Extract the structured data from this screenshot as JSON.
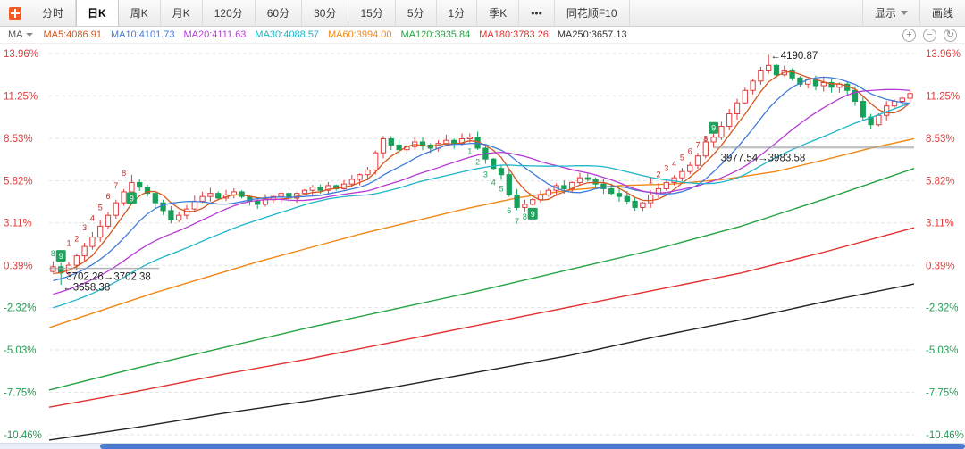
{
  "toolbar": {
    "tabs": [
      {
        "id": "time-share",
        "label": "分时"
      },
      {
        "id": "daily-k",
        "label": "日K",
        "active": true
      },
      {
        "id": "weekly-k",
        "label": "周K"
      },
      {
        "id": "monthly-k",
        "label": "月K"
      },
      {
        "id": "120-min",
        "label": "120分"
      },
      {
        "id": "60-min",
        "label": "60分"
      },
      {
        "id": "30-min",
        "label": "30分"
      },
      {
        "id": "15-min",
        "label": "15分"
      },
      {
        "id": "5-min",
        "label": "5分"
      },
      {
        "id": "1-min",
        "label": "1分"
      },
      {
        "id": "quarterly-k",
        "label": "季K"
      },
      {
        "id": "more",
        "label": "•••"
      },
      {
        "id": "ths-f10",
        "label": "同花顺F10"
      }
    ],
    "right_tabs": [
      {
        "id": "display",
        "label": "显示",
        "chevron": true
      },
      {
        "id": "draw-line",
        "label": "画线"
      }
    ]
  },
  "indicator_bar": {
    "selector": "MA",
    "mas": [
      {
        "text": "MA5:4086.91",
        "color": "#d4561e"
      },
      {
        "text": "MA10:4101.73",
        "color": "#3f7bd9"
      },
      {
        "text": "MA20:4111.63",
        "color": "#b63bd4"
      },
      {
        "text": "MA30:4088.57",
        "color": "#1fb5c9"
      },
      {
        "text": "MA60:3994.00",
        "color": "#f08818"
      },
      {
        "text": "MA120:3935.84",
        "color": "#27a343"
      },
      {
        "text": "MA180:3783.26",
        "color": "#e33030"
      },
      {
        "text": "MA250:3657.13",
        "color": "#333333"
      }
    ],
    "icons": [
      {
        "id": "zoom-in",
        "glyph": "+"
      },
      {
        "id": "zoom-out",
        "glyph": "−"
      },
      {
        "id": "reset-view",
        "glyph": "↻"
      }
    ]
  },
  "chart_data": {
    "type": "candlestick",
    "unit": "percent-change",
    "axis_up_color": "#e03b3b",
    "axis_down_color": "#1fa053",
    "up_color": "#e23a3a",
    "down_color": "#16a05a",
    "marker_red": "#c22b2b",
    "marker_green": "#1fa35c",
    "grid": true,
    "y_ticks": [
      {
        "label": "13.96%",
        "value": 13.96
      },
      {
        "label": "11.25%",
        "value": 11.25
      },
      {
        "label": "8.53%",
        "value": 8.53
      },
      {
        "label": "5.82%",
        "value": 5.82
      },
      {
        "label": "3.11%",
        "value": 3.11
      },
      {
        "label": "0.39%",
        "value": 0.39
      },
      {
        "label": "-2.32%",
        "value": -2.32
      },
      {
        "label": "-5.03%",
        "value": -5.03
      },
      {
        "label": "-7.75%",
        "value": -7.75
      },
      {
        "label": "-10.46%",
        "value": -10.46
      }
    ],
    "closes": [
      0.3,
      -0.1,
      0.4,
      1.0,
      1.6,
      2.2,
      2.9,
      3.6,
      4.4,
      5.1,
      5.7,
      5.4,
      5.0,
      4.4,
      3.9,
      3.3,
      3.6,
      4.0,
      4.5,
      4.8,
      5.0,
      4.7,
      4.9,
      5.1,
      4.8,
      4.5,
      4.3,
      4.6,
      4.8,
      5.0,
      4.7,
      5.0,
      5.2,
      5.4,
      5.2,
      5.5,
      5.3,
      5.6,
      5.9,
      6.2,
      6.5,
      7.6,
      8.5,
      8.1,
      7.8,
      8.0,
      8.3,
      8.1,
      7.9,
      8.2,
      8.4,
      8.2,
      8.5,
      8.6,
      7.9,
      7.2,
      6.6,
      6.2,
      4.9,
      4.1,
      4.3,
      4.6,
      4.9,
      5.2,
      5.5,
      5.3,
      5.7,
      6.0,
      5.9,
      5.6,
      5.3,
      5.0,
      4.8,
      4.5,
      4.1,
      4.4,
      4.9,
      5.3,
      5.7,
      6.0,
      6.4,
      6.8,
      7.4,
      8.3,
      8.6,
      9.3,
      10.1,
      10.8,
      11.6,
      12.2,
      12.9,
      13.2,
      12.6,
      12.9,
      12.4,
      12.0,
      12.3,
      11.9,
      12.1,
      11.8,
      12.0,
      11.6,
      10.9,
      9.9,
      9.4,
      10.0,
      10.6,
      10.9,
      11.1,
      11.4
    ],
    "wick_overrides": {
      "1": [
        null,
        -0.85
      ],
      "10": [
        6.2,
        null
      ],
      "91": [
        13.88,
        null
      ],
      "104": [
        null,
        9.15
      ]
    },
    "prior_trend": {
      "from": -5,
      "to": 0,
      "count": 30
    },
    "ma_overlays": [
      {
        "name": "MA5",
        "window": 5,
        "color": "#d4561e"
      },
      {
        "name": "MA10",
        "window": 10,
        "color": "#3f7bd9"
      },
      {
        "name": "MA20",
        "window": 20,
        "color": "#b63bd4"
      },
      {
        "name": "MA30",
        "window": 30,
        "color": "#1fb5c9"
      }
    ],
    "long_ma": [
      {
        "name": "MA60",
        "color": "#f08818",
        "points": [
          [
            0,
            -3.6
          ],
          [
            0.06,
            -2.5
          ],
          [
            0.12,
            -1.4
          ],
          [
            0.18,
            -0.4
          ],
          [
            0.24,
            0.6
          ],
          [
            0.3,
            1.5
          ],
          [
            0.36,
            2.4
          ],
          [
            0.42,
            3.2
          ],
          [
            0.48,
            4.0
          ],
          [
            0.54,
            4.7
          ],
          [
            0.6,
            5.2
          ],
          [
            0.66,
            5.5
          ],
          [
            0.72,
            5.6
          ],
          [
            0.78,
            5.9
          ],
          [
            0.84,
            6.4
          ],
          [
            0.9,
            7.2
          ],
          [
            0.95,
            7.9
          ],
          [
            1,
            8.5
          ]
        ]
      },
      {
        "name": "MA120",
        "color": "#27a343",
        "points": [
          [
            0,
            -7.6
          ],
          [
            0.1,
            -6.2
          ],
          [
            0.2,
            -4.9
          ],
          [
            0.3,
            -3.6
          ],
          [
            0.4,
            -2.4
          ],
          [
            0.5,
            -1.2
          ],
          [
            0.6,
            0.1
          ],
          [
            0.7,
            1.4
          ],
          [
            0.8,
            2.9
          ],
          [
            0.9,
            4.7
          ],
          [
            1,
            6.6
          ]
        ]
      },
      {
        "name": "MA180",
        "color": "#e33030",
        "points": [
          [
            0,
            -8.7
          ],
          [
            0.1,
            -7.7
          ],
          [
            0.2,
            -6.6
          ],
          [
            0.3,
            -5.6
          ],
          [
            0.4,
            -4.5
          ],
          [
            0.5,
            -3.4
          ],
          [
            0.6,
            -2.3
          ],
          [
            0.7,
            -1.2
          ],
          [
            0.8,
            -0.1
          ],
          [
            0.9,
            1.3
          ],
          [
            1,
            2.8
          ]
        ]
      },
      {
        "name": "MA250",
        "color": "#222222",
        "points": [
          [
            0,
            -10.8
          ],
          [
            0.1,
            -10.0
          ],
          [
            0.2,
            -9.1
          ],
          [
            0.3,
            -8.3
          ],
          [
            0.4,
            -7.4
          ],
          [
            0.5,
            -6.4
          ],
          [
            0.6,
            -5.4
          ],
          [
            0.7,
            -4.2
          ],
          [
            0.8,
            -3.1
          ],
          [
            0.9,
            -1.9
          ],
          [
            1,
            -0.8
          ]
        ]
      }
    ],
    "markers": [
      {
        "i": 0,
        "pct": 1.15,
        "t": "8",
        "c": "green"
      },
      {
        "i": 1,
        "pct": 1.0,
        "t": "9",
        "c": "green",
        "boxed": true
      },
      {
        "i": 2,
        "pct": 1.8,
        "t": "1",
        "c": "red"
      },
      {
        "i": 3,
        "pct": 2.1,
        "t": "2",
        "c": "red"
      },
      {
        "i": 4,
        "pct": 2.8,
        "t": "3",
        "c": "red"
      },
      {
        "i": 5,
        "pct": 3.4,
        "t": "4",
        "c": "red"
      },
      {
        "i": 6,
        "pct": 4.1,
        "t": "5",
        "c": "red"
      },
      {
        "i": 7,
        "pct": 4.8,
        "t": "6",
        "c": "red"
      },
      {
        "i": 8,
        "pct": 5.5,
        "t": "7",
        "c": "red"
      },
      {
        "i": 9,
        "pct": 6.3,
        "t": "8",
        "c": "red"
      },
      {
        "i": 10,
        "pct": 4.7,
        "t": "9",
        "c": "green",
        "boxed": true
      },
      {
        "i": 53,
        "pct": 7.7,
        "t": "1",
        "c": "green"
      },
      {
        "i": 54,
        "pct": 7.0,
        "t": "2",
        "c": "green"
      },
      {
        "i": 55,
        "pct": 6.2,
        "t": "3",
        "c": "green"
      },
      {
        "i": 56,
        "pct": 5.7,
        "t": "4",
        "c": "green"
      },
      {
        "i": 57,
        "pct": 5.3,
        "t": "5",
        "c": "green"
      },
      {
        "i": 58,
        "pct": 3.9,
        "t": "6",
        "c": "green"
      },
      {
        "i": 59,
        "pct": 3.2,
        "t": "7",
        "c": "green"
      },
      {
        "i": 60,
        "pct": 3.5,
        "t": "8",
        "c": "green"
      },
      {
        "i": 61,
        "pct": 3.7,
        "t": "9",
        "c": "green",
        "boxed": true
      },
      {
        "i": 76,
        "pct": 5.8,
        "t": "1",
        "c": "red"
      },
      {
        "i": 77,
        "pct": 6.2,
        "t": "2",
        "c": "red"
      },
      {
        "i": 78,
        "pct": 6.6,
        "t": "3",
        "c": "red"
      },
      {
        "i": 79,
        "pct": 6.9,
        "t": "4",
        "c": "red"
      },
      {
        "i": 80,
        "pct": 7.3,
        "t": "5",
        "c": "red"
      },
      {
        "i": 81,
        "pct": 7.7,
        "t": "6",
        "c": "red"
      },
      {
        "i": 82,
        "pct": 8.1,
        "t": "7",
        "c": "red"
      },
      {
        "i": 83,
        "pct": 8.5,
        "t": "8",
        "c": "red"
      },
      {
        "i": 84,
        "pct": 9.2,
        "t": "9",
        "c": "green",
        "boxed": true
      }
    ],
    "annotations": {
      "peak": {
        "i": 91,
        "pct": 13.85,
        "text": "←4190.87"
      },
      "resistance": {
        "from_i": 84,
        "pct": 7.95,
        "label": "3977.54→3983.58",
        "label_pct": 7.3
      },
      "gap_low": {
        "line_from_i": 0,
        "line_to_i": 13,
        "pct": 0.2,
        "label": "3702.26→3702.38",
        "label_pct": -0.3,
        "low_i": 1,
        "low_pct": -1.0,
        "low_label": "←3658.38"
      }
    }
  },
  "scrollbar": {
    "thumb_left": "10.4%",
    "color": "#4a7ad1"
  }
}
